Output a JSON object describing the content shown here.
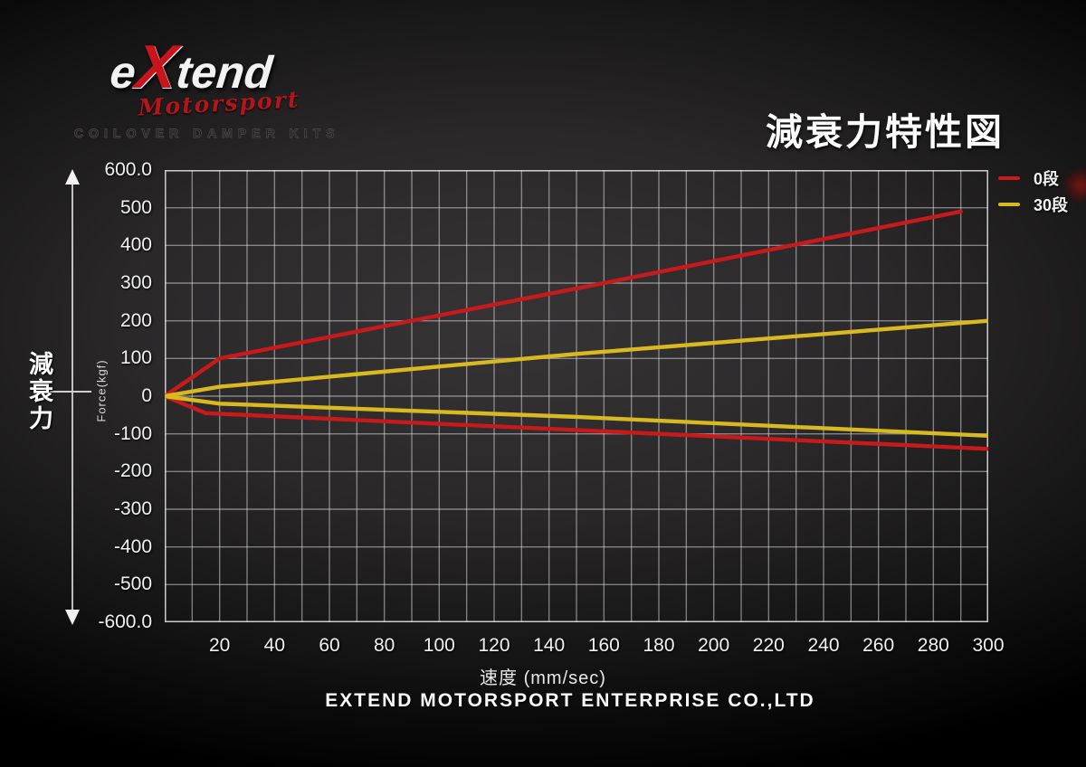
{
  "title": "減衰力特性図",
  "logo": {
    "brand_e": "e",
    "brand_x": "X",
    "brand_tend": "tend",
    "subtitle": "Motorsport",
    "tagline": "COILOVER DAMPER KITS"
  },
  "left_axis_annotation": "減衰力",
  "footer": "EXTEND MOTORSPORT ENTERPRISE CO.,LTD",
  "chart_data": {
    "type": "line",
    "title": "減衰力特性図",
    "xlabel": "速度 (mm/sec)",
    "ylabel": "Force(kgf)",
    "xlim": [
      0,
      300
    ],
    "ylim": [
      -600,
      600
    ],
    "grid": true,
    "x_grid_step": 10,
    "y_grid_step": 100,
    "x_ticks": [
      20,
      40,
      60,
      80,
      100,
      120,
      140,
      160,
      180,
      200,
      220,
      240,
      260,
      280,
      300
    ],
    "y_tick_values": [
      600,
      500,
      400,
      300,
      200,
      100,
      0,
      -100,
      -200,
      -300,
      -400,
      -500,
      -600
    ],
    "y_tick_labels": [
      "600.0",
      "500",
      "400",
      "300",
      "200",
      "100",
      "0",
      "-100",
      "-200",
      "-300",
      "-400",
      "-500",
      "-600.0"
    ],
    "legend_position": "top-right",
    "series": [
      {
        "name": "0段",
        "color": "#c81a1a",
        "compression_points": [
          [
            0,
            0
          ],
          [
            20,
            100
          ],
          [
            160,
            300
          ],
          [
            290,
            490
          ]
        ],
        "rebound_points": [
          [
            0,
            0
          ],
          [
            15,
            -45
          ],
          [
            150,
            -90
          ],
          [
            300,
            -140
          ]
        ]
      },
      {
        "name": "30段",
        "color": "#d9b920",
        "compression_points": [
          [
            0,
            0
          ],
          [
            20,
            25
          ],
          [
            150,
            112
          ],
          [
            300,
            200
          ]
        ],
        "rebound_points": [
          [
            0,
            0
          ],
          [
            20,
            -20
          ],
          [
            150,
            -55
          ],
          [
            300,
            -105
          ]
        ]
      }
    ]
  }
}
